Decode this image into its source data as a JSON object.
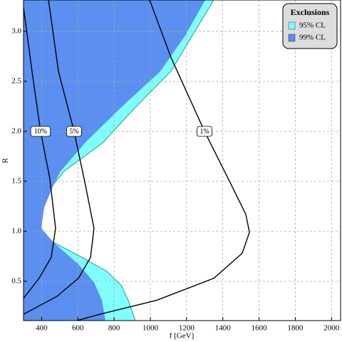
{
  "chart_data": {
    "type": "exclusion",
    "xlabel": "f [GeV]",
    "ylabel": "R",
    "xlim": [
      300,
      2050
    ],
    "ylim": [
      0.107,
      3.314
    ],
    "xticks": [
      400,
      600,
      800,
      1000,
      1200,
      1400,
      1600,
      1800,
      2000
    ],
    "yticks": [
      0.5,
      {
        "value": 1.0,
        "label": "1.0"
      },
      1.5,
      {
        "value": 2.0,
        "label": "2.0"
      },
      2.5,
      {
        "value": 3.0,
        "label": "3.0"
      }
    ],
    "grid": true,
    "legend": {
      "title": "Exclusions",
      "position": "upper right"
    },
    "series": [
      {
        "name": "95% CL",
        "color": "#80ffff",
        "x": [
          1350,
          1232,
          1114,
          917,
          740,
          524,
          426,
          359,
          335,
          359,
          465,
          622,
          760,
          839,
          878,
          917,
          300,
          300
        ],
        "y": [
          3.314,
          2.96,
          2.6,
          2.24,
          1.89,
          1.6,
          1.38,
          1.21,
          1.14,
          1.03,
          0.89,
          0.74,
          0.6,
          0.46,
          0.31,
          0.107,
          0.107,
          3.314
        ]
      },
      {
        "name": "99% CL",
        "color": "#5b8ff0",
        "x": [
          1303,
          1193,
          1055,
          839,
          642,
          504,
          465,
          414,
          398,
          465,
          603,
          689,
          733,
          752,
          300,
          300
        ],
        "y": [
          3.314,
          2.96,
          2.6,
          2.24,
          1.89,
          1.6,
          1.46,
          1.24,
          1.03,
          0.89,
          0.67,
          0.49,
          0.31,
          0.107,
          0.107,
          3.314
        ]
      }
    ],
    "contours": [
      {
        "label": "10%",
        "x": [
          300,
          347,
          394,
          445,
          477,
          453,
          386,
          300
        ],
        "y": [
          3.24,
          2.6,
          2.0,
          1.53,
          1.03,
          0.74,
          0.53,
          0.33
        ]
      },
      {
        "label": "5%",
        "x": [
          438,
          493,
          579,
          642,
          689,
          670,
          603,
          485,
          300
        ],
        "y": [
          3.314,
          2.6,
          2.0,
          1.46,
          1.03,
          0.74,
          0.53,
          0.35,
          0.17
        ]
      },
      {
        "label": "1%",
        "x": [
          996,
          1114,
          1299,
          1429,
          1527,
          1547,
          1507,
          1350,
          1035,
          721,
          595
        ],
        "y": [
          3.314,
          2.74,
          2.0,
          1.53,
          1.17,
          0.99,
          0.78,
          0.53,
          0.31,
          0.17,
          0.107
        ]
      }
    ]
  }
}
